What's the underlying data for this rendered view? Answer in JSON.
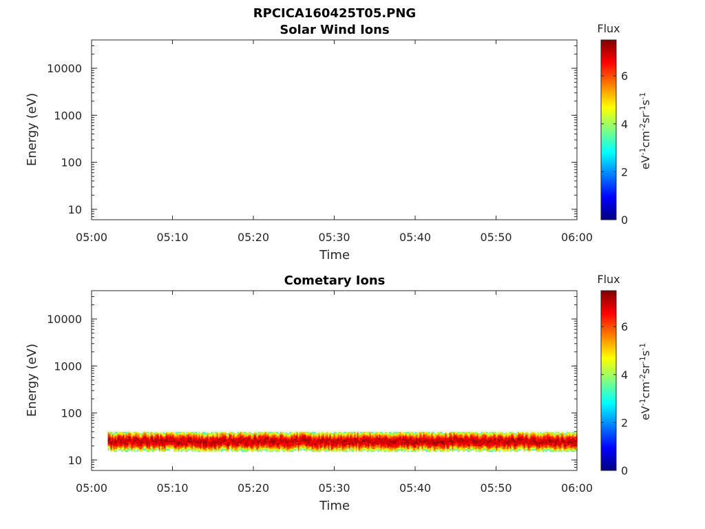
{
  "figure_title": "RPCICA160425T05.PNG",
  "colorbar_label": "Flux",
  "colorbar_ticks": [
    "0",
    "2",
    "4",
    "6"
  ],
  "colorbar_range": [
    0,
    7.5
  ],
  "colorbar_unit": "eV-1cm-2sr-1s-1",
  "chart_data": [
    {
      "type": "heatmap",
      "title": "Solar Wind Ions",
      "xlabel": "Time",
      "ylabel": "Energy (eV)",
      "x_ticks": [
        "05:00",
        "05:10",
        "05:20",
        "05:30",
        "05:40",
        "05:50",
        "06:00"
      ],
      "xlim": [
        "05:00",
        "06:00"
      ],
      "y_ticks": [
        "10",
        "100",
        "1000",
        "10000"
      ],
      "y_scale": "log",
      "ylim": [
        6,
        40000
      ],
      "bands": []
    },
    {
      "type": "heatmap",
      "title": "Cometary Ions",
      "xlabel": "Time",
      "ylabel": "Energy (eV)",
      "x_ticks": [
        "05:00",
        "05:10",
        "05:20",
        "05:30",
        "05:40",
        "05:50",
        "06:00"
      ],
      "xlim": [
        "05:00",
        "06:00"
      ],
      "y_ticks": [
        "10",
        "100",
        "1000",
        "10000"
      ],
      "y_scale": "log",
      "ylim": [
        6,
        40000
      ],
      "bands": [
        {
          "t_start": "05:02",
          "t_end": "06:00",
          "energy_low": 15,
          "energy_high": 40,
          "peak_energy": 25,
          "peak_flux": 7
        }
      ]
    }
  ]
}
